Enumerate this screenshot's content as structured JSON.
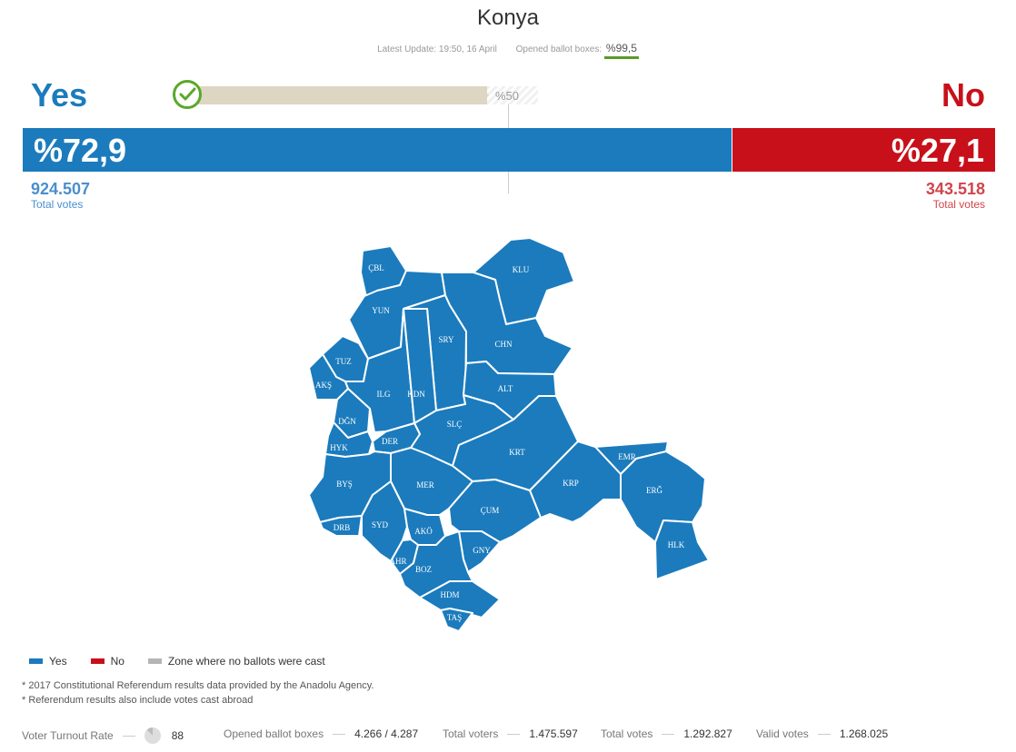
{
  "header": {
    "title": "Konya",
    "latest_update": "Latest Update: 19:50, 16 April",
    "opened_label": "Opened ballot boxes:",
    "opened_value": "%99,5"
  },
  "result": {
    "yes_label": "Yes",
    "no_label": "No",
    "half_label": "%50",
    "yes_share": 72.9,
    "no_share": 27.1,
    "yes_pct": "%72,9",
    "no_pct": "%27,1",
    "yes_votes": "924.507",
    "no_votes": "343.518",
    "total_votes_label": "Total votes",
    "winner": "Yes"
  },
  "colors": {
    "yes": "#1b7bbd",
    "no": "#c8101a",
    "no_ballots": "#b5b5b5"
  },
  "map": {
    "districts": [
      {
        "abbr": "ÇBL",
        "result": "Yes"
      },
      {
        "abbr": "KLU",
        "result": "Yes"
      },
      {
        "abbr": "YUN",
        "result": "Yes"
      },
      {
        "abbr": "SRY",
        "result": "Yes"
      },
      {
        "abbr": "CHN",
        "result": "Yes"
      },
      {
        "abbr": "TUZ",
        "result": "Yes"
      },
      {
        "abbr": "AKŞ",
        "result": "Yes"
      },
      {
        "abbr": "ILG",
        "result": "Yes"
      },
      {
        "abbr": "KDN",
        "result": "Yes"
      },
      {
        "abbr": "ALT",
        "result": "Yes"
      },
      {
        "abbr": "DĞN",
        "result": "Yes"
      },
      {
        "abbr": "SLÇ",
        "result": "Yes"
      },
      {
        "abbr": "HYK",
        "result": "Yes"
      },
      {
        "abbr": "DER",
        "result": "Yes"
      },
      {
        "abbr": "KRT",
        "result": "Yes"
      },
      {
        "abbr": "EMR",
        "result": "Yes"
      },
      {
        "abbr": "BYŞ",
        "result": "Yes"
      },
      {
        "abbr": "MER",
        "result": "Yes"
      },
      {
        "abbr": "KRP",
        "result": "Yes"
      },
      {
        "abbr": "ERĞ",
        "result": "Yes"
      },
      {
        "abbr": "ÇUM",
        "result": "Yes"
      },
      {
        "abbr": "DRB",
        "result": "Yes"
      },
      {
        "abbr": "SYD",
        "result": "Yes"
      },
      {
        "abbr": "AKÖ",
        "result": "Yes"
      },
      {
        "abbr": "GNY",
        "result": "Yes"
      },
      {
        "abbr": "AHR",
        "result": "Yes"
      },
      {
        "abbr": "BOZ",
        "result": "Yes"
      },
      {
        "abbr": "HLK",
        "result": "Yes"
      },
      {
        "abbr": "HDM",
        "result": "Yes"
      },
      {
        "abbr": "TAŞ",
        "result": "Yes"
      }
    ]
  },
  "legend": {
    "yes": "Yes",
    "no": "No",
    "none": "Zone where no ballots were cast"
  },
  "notes": {
    "source": "* 2017 Constitutional Referendum results data provided by the Anadolu Agency.",
    "abroad": "* Referendum results also include votes cast abroad"
  },
  "stats": {
    "turnout_label": "Voter Turnout Rate",
    "turnout_value": "88",
    "opened_label": "Opened ballot boxes",
    "opened_value": "4.266 / 4.287",
    "total_voters_label": "Total voters",
    "total_voters_value": "1.475.597",
    "total_votes_label": "Total votes",
    "total_votes_value": "1.292.827",
    "valid_votes_label": "Valid votes",
    "valid_votes_value": "1.268.025"
  }
}
